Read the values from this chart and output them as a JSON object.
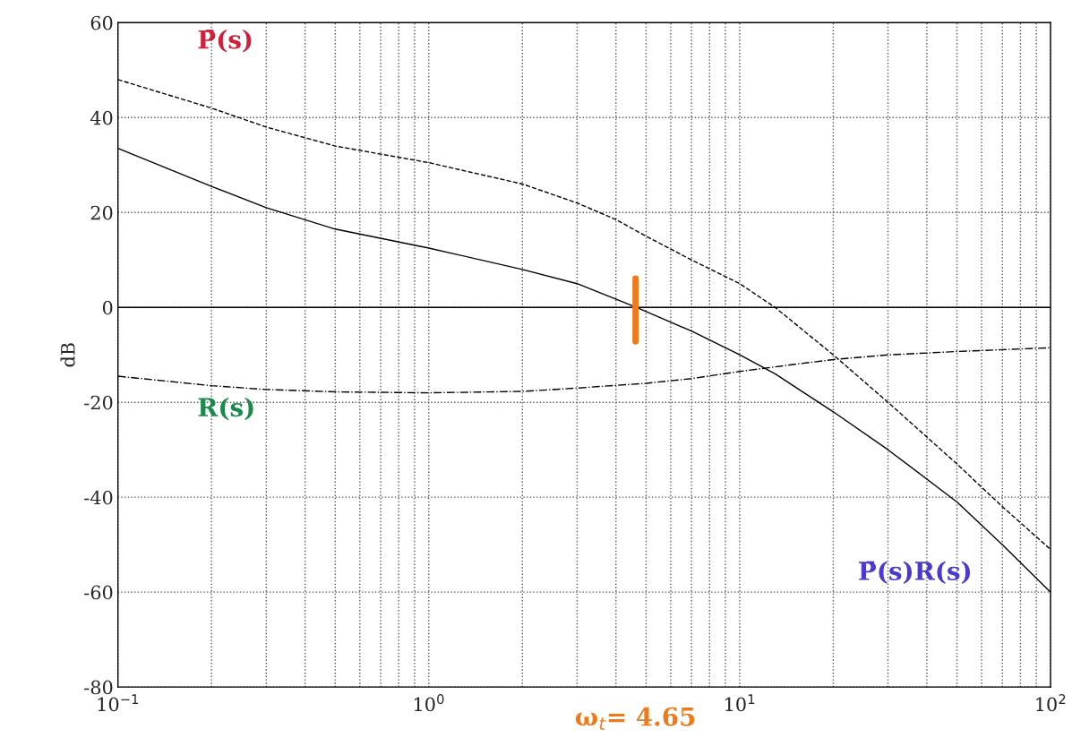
{
  "chart_data": {
    "type": "line",
    "ylabel": "dB",
    "xlim": [
      0.1,
      100
    ],
    "ylim": [
      -80,
      60
    ],
    "log": "x",
    "xticks": [
      {
        "value": 0.1,
        "label": "10$^{−1}$"
      },
      {
        "value": 1,
        "label": "10$^{0}$"
      },
      {
        "value": 10,
        "label": "10$^{1}$"
      },
      {
        "value": 100,
        "label": "10$^{2}$"
      }
    ],
    "yticks": [
      -80,
      -60,
      -40,
      -20,
      0,
      20,
      40,
      60
    ],
    "grid": true,
    "series": [
      {
        "name": "P̄(s)",
        "color": "#000000",
        "line_style": "dashed",
        "x": [
          0.1,
          0.2,
          0.3,
          0.5,
          1,
          2,
          3,
          4,
          5,
          7,
          10,
          13,
          20,
          30,
          50,
          70,
          100
        ],
        "values": [
          48,
          42,
          38,
          34,
          30.5,
          26,
          22,
          18.5,
          15,
          10,
          5,
          0,
          -10,
          -20,
          -33,
          -42,
          -51
        ]
      },
      {
        "name": "R(s)",
        "color": "#000000",
        "line_style": "dashdot",
        "x": [
          0.1,
          0.2,
          0.3,
          0.5,
          1,
          2,
          3,
          5,
          7,
          10,
          15,
          20,
          30,
          50,
          100
        ],
        "values": [
          -14.5,
          -16.5,
          -17.3,
          -17.8,
          -18,
          -17.7,
          -17,
          -16,
          -15,
          -13.5,
          -12,
          -11,
          -10,
          -9.3,
          -8.5
        ]
      },
      {
        "name": "P̄(s)R(s)",
        "color": "#000000",
        "line_style": "solid",
        "x": [
          0.1,
          0.2,
          0.3,
          0.5,
          1,
          2,
          3,
          4.65,
          7,
          10,
          13,
          20,
          30,
          50,
          70,
          100
        ],
        "values": [
          33.5,
          25.5,
          21,
          16.5,
          12.5,
          8,
          5,
          0,
          -5,
          -10,
          -14,
          -22,
          -30,
          -41,
          -50,
          -60
        ]
      }
    ],
    "ref_lines": [
      {
        "axis": "y",
        "value": 0,
        "color": "#000000",
        "line_style": "solid"
      }
    ],
    "annotations": [
      "ω$_{t}$= 4.65"
    ]
  }
}
